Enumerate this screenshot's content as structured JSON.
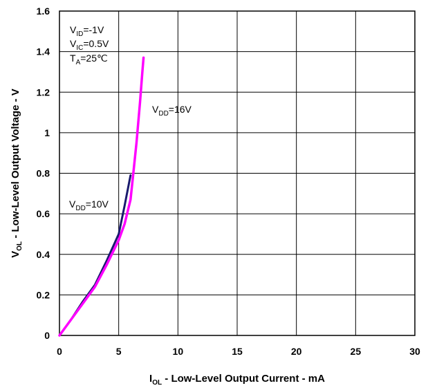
{
  "chart_data": {
    "type": "line",
    "title": "",
    "xlabel": {
      "main": "I",
      "sub": "OL",
      "rest": " - Low-Level Output Current - mA"
    },
    "ylabel": {
      "main": "V",
      "sub": "OL",
      "rest": " - Low-Level Output Voltage - V"
    },
    "xlim": [
      0,
      30
    ],
    "ylim": [
      0,
      1.6
    ],
    "x_ticks": [
      0,
      5,
      10,
      15,
      20,
      25,
      30
    ],
    "x_tick_labels": [
      "0",
      "5",
      "10",
      "15",
      "20",
      "25",
      "30"
    ],
    "y_ticks": [
      0,
      0.2,
      0.4,
      0.6,
      0.8,
      1.0,
      1.2,
      1.4,
      1.6
    ],
    "y_tick_labels": [
      "0",
      "0.2",
      "0.4",
      "0.6",
      "0.8",
      "1",
      "1.2",
      "1.4",
      "1.6"
    ],
    "grid": true,
    "conditions": [
      {
        "main": "V",
        "sub": "ID",
        "rest": "=-1V"
      },
      {
        "main": "V",
        "sub": "IC",
        "rest": "=0.5V"
      },
      {
        "main": "T",
        "sub": "A",
        "rest": "=25℃"
      }
    ],
    "series": [
      {
        "name": "VDD=10V",
        "label": {
          "main": "V",
          "sub": "DD",
          "rest": "=10V"
        },
        "color": "#1a1a6e",
        "x": [
          0,
          1,
          2,
          3,
          4,
          5,
          5.5,
          6
        ],
        "y": [
          0,
          0.08,
          0.17,
          0.25,
          0.37,
          0.5,
          0.64,
          0.79
        ]
      },
      {
        "name": "VDD=16V",
        "label": {
          "main": "V",
          "sub": "DD",
          "rest": "=16V"
        },
        "color": "#ff00ff",
        "x": [
          0,
          1,
          2,
          3,
          4,
          5,
          5.5,
          6,
          6.2,
          6.5,
          6.8,
          7.0,
          7.1
        ],
        "y": [
          0,
          0.08,
          0.16,
          0.24,
          0.35,
          0.47,
          0.55,
          0.67,
          0.78,
          0.95,
          1.15,
          1.3,
          1.37
        ]
      }
    ]
  }
}
